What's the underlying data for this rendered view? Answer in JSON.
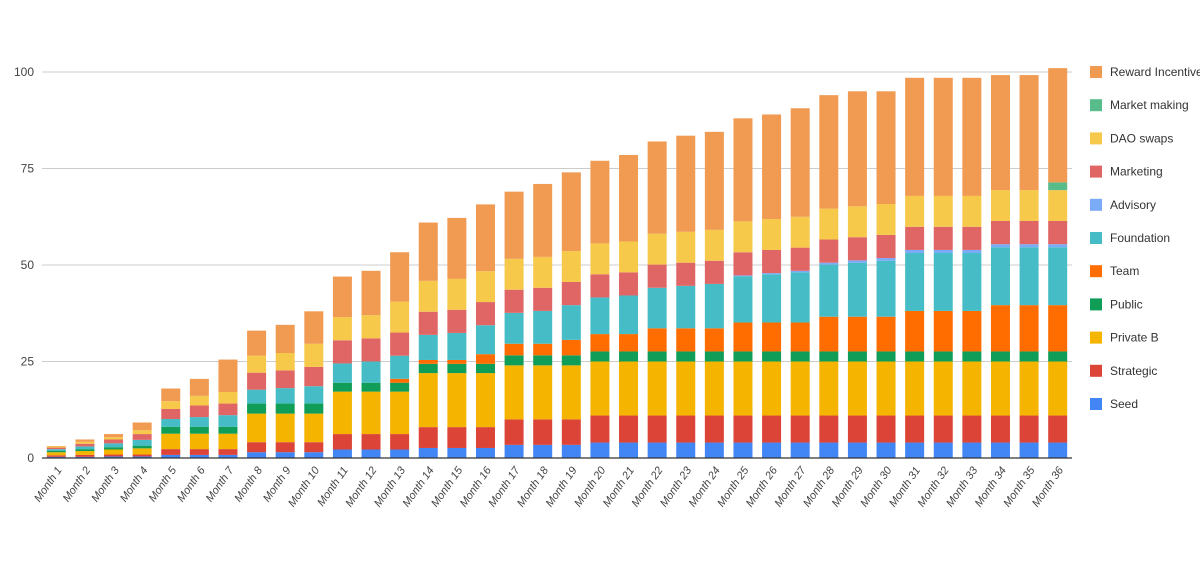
{
  "chart_data": {
    "type": "bar",
    "stacked": true,
    "title": "",
    "xlabel": "",
    "ylabel": "",
    "ylim": [
      0,
      100
    ],
    "yticks": [
      0,
      25,
      50,
      75,
      100
    ],
    "grid": true,
    "legend_position": "right",
    "categories": [
      "Month 1",
      "Month 2",
      "Month 3",
      "Month 4",
      "Month 5",
      "Month 6",
      "Month 7",
      "Month 8",
      "Month 9",
      "Month 10",
      "Month 11",
      "Month 12",
      "Month 13",
      "Month 14",
      "Month 15",
      "Month 16",
      "Month 17",
      "Month 18",
      "Month 19",
      "Month 20",
      "Month 21",
      "Month 22",
      "Month 23",
      "Month 24",
      "Month 25",
      "Month 26",
      "Month 27",
      "Month 28",
      "Month 29",
      "Month 30",
      "Month 31",
      "Month 32",
      "Month 33",
      "Month 34",
      "Month 35",
      "Month 36"
    ],
    "series": [
      {
        "name": "Seed",
        "color": "#4285f4",
        "values": [
          0.3,
          0.3,
          0.4,
          0.4,
          0.8,
          0.8,
          0.8,
          1.5,
          1.5,
          1.5,
          2.2,
          2.2,
          2.2,
          2.6,
          2.6,
          2.6,
          3.4,
          3.4,
          3.4,
          4,
          4,
          4,
          4,
          4,
          4,
          4,
          4,
          4,
          4,
          4,
          4,
          4,
          4,
          4,
          4,
          4
        ]
      },
      {
        "name": "Strategic",
        "color": "#db4437",
        "values": [
          0.4,
          0.5,
          0.5,
          0.5,
          1.5,
          1.5,
          1.5,
          2.6,
          2.6,
          2.6,
          4,
          4,
          4,
          5.4,
          5.4,
          5.4,
          6.6,
          6.6,
          6.6,
          7,
          7,
          7,
          7,
          7,
          7,
          7,
          7,
          7,
          7,
          7,
          7,
          7,
          7,
          7,
          7,
          7
        ]
      },
      {
        "name": "Private B",
        "color": "#f4b400",
        "values": [
          0.8,
          1,
          1.3,
          1.6,
          4,
          4,
          4,
          7.4,
          7.4,
          7.4,
          11,
          11,
          11,
          14,
          14,
          14,
          14,
          14,
          14,
          14,
          14,
          14,
          14,
          14,
          14,
          14,
          14,
          14,
          14,
          14,
          14,
          14,
          14,
          14,
          14,
          14
        ]
      },
      {
        "name": "Public",
        "color": "#0f9d58",
        "values": [
          0.4,
          0.5,
          0.6,
          0.7,
          1.8,
          1.8,
          1.8,
          2.6,
          2.6,
          2.6,
          2.3,
          2.3,
          2.3,
          2.4,
          2.4,
          2.4,
          2.6,
          2.6,
          2.6,
          2.6,
          2.6,
          2.6,
          2.6,
          2.6,
          2.6,
          2.6,
          2.6,
          2.6,
          2.6,
          2.6,
          2.6,
          2.6,
          2.6,
          2.6,
          2.6,
          2.6
        ]
      },
      {
        "name": "Team",
        "color": "#ff6d01",
        "values": [
          0,
          0,
          0,
          0,
          0,
          0,
          0,
          0,
          0,
          0,
          0,
          0,
          1,
          1,
          1,
          2.5,
          3,
          3,
          4,
          4.5,
          4.5,
          6,
          6,
          6,
          7.5,
          7.5,
          7.5,
          9,
          9,
          9,
          10.5,
          10.5,
          10.5,
          12,
          12,
          12
        ]
      },
      {
        "name": "Foundation",
        "color": "#46bdc6",
        "values": [
          0.4,
          0.7,
          1,
          1.5,
          2,
          2.5,
          3,
          3.6,
          4,
          4.5,
          5,
          5.5,
          6,
          6.5,
          7,
          7.5,
          8,
          8.5,
          9,
          9.5,
          10,
          10.5,
          11,
          11.5,
          12,
          12.5,
          13,
          13.5,
          14,
          14.5,
          15,
          15,
          15,
          15,
          15,
          15
        ]
      },
      {
        "name": "Advisory",
        "color": "#7baaf7",
        "values": [
          0,
          0,
          0,
          0,
          0,
          0,
          0,
          0,
          0,
          0,
          0,
          0,
          0,
          0,
          0,
          0,
          0,
          0,
          0,
          0,
          0,
          0,
          0,
          0,
          0.2,
          0.3,
          0.4,
          0.5,
          0.6,
          0.7,
          0.8,
          0.8,
          0.8,
          0.8,
          0.8,
          0.8
        ]
      },
      {
        "name": "Marketing",
        "color": "#e06666",
        "values": [
          0.4,
          0.7,
          1,
          1.5,
          2.6,
          3,
          3,
          4.4,
          4.6,
          5,
          6,
          6,
          6,
          6,
          6,
          6,
          6,
          6,
          6,
          6,
          6,
          6,
          6,
          6,
          6,
          6,
          6,
          6,
          6,
          6,
          6,
          6,
          6,
          6,
          6,
          6
        ]
      },
      {
        "name": "DAO swaps",
        "color": "#f6c94a",
        "values": [
          0.3,
          0.5,
          0.6,
          1,
          2,
          2.5,
          3,
          4.4,
          4.5,
          6,
          6,
          6,
          8,
          8,
          8,
          8,
          8,
          8,
          8,
          8,
          8,
          8,
          8,
          8,
          8,
          8,
          8,
          8,
          8,
          8,
          8,
          8,
          8,
          8,
          8,
          8
        ]
      },
      {
        "name": "Market making",
        "color": "#57bb8a",
        "values": [
          0,
          0,
          0,
          0,
          0,
          0,
          0,
          0,
          0,
          0,
          0,
          0,
          0,
          0,
          0,
          0,
          0,
          0,
          0,
          0,
          0,
          0,
          0,
          0,
          0,
          0,
          0,
          0,
          0,
          0,
          0,
          0,
          0,
          0,
          0,
          2
        ]
      },
      {
        "name": "Reward Incentive",
        "color": "#f09a52",
        "values": [
          0.1,
          0.6,
          0.8,
          2,
          3.3,
          4.4,
          8.4,
          6.5,
          7.3,
          8.4,
          10.5,
          11.5,
          12.8,
          15.1,
          15.8,
          17.3,
          17.4,
          18.9,
          20.4,
          21.4,
          22.4,
          23.9,
          24.9,
          25.4,
          26.7,
          27.1,
          28.1,
          29.4,
          29.8,
          29.2,
          30.6,
          30.6,
          30.6,
          29.8,
          29.8,
          29.6
        ]
      }
    ]
  }
}
